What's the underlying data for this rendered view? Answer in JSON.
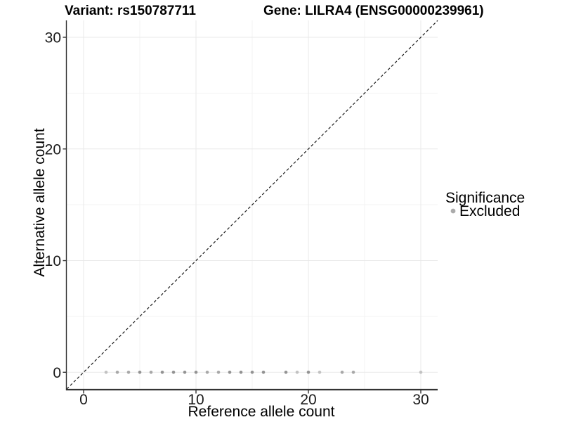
{
  "figure": {
    "background": "#ffffff",
    "titles": {
      "left": "Variant: rs150787711",
      "right": "Gene: LILRA4 (ENSG00000239961)"
    }
  },
  "chart_data": {
    "type": "scatter",
    "title_left": "Variant: rs150787711",
    "title_right": "Gene: LILRA4 (ENSG00000239961)",
    "xlabel": "Reference allele count",
    "ylabel": "Alternative allele count",
    "xlim": [
      -1.5,
      31.5
    ],
    "ylim": [
      -1.5,
      31.5
    ],
    "x_major_ticks": [
      0,
      10,
      20,
      30
    ],
    "y_major_ticks": [
      0,
      10,
      20,
      30
    ],
    "x_minor_gridlines": [
      5,
      15,
      25
    ],
    "y_minor_gridlines": [
      5,
      15,
      25
    ],
    "grid": "on",
    "identity_line": {
      "equation": "y = x",
      "style": "dashed",
      "color": "#1a1a1a"
    },
    "point_shades": {
      "light": "#c2c2c2",
      "medium": "#a8a8a8",
      "dark": "#939393"
    },
    "series": [
      {
        "name": "Excluded",
        "points": [
          {
            "x": 2,
            "y": 0,
            "shade": "light"
          },
          {
            "x": 3,
            "y": 0,
            "shade": "medium"
          },
          {
            "x": 4,
            "y": 0,
            "shade": "medium"
          },
          {
            "x": 5,
            "y": 0,
            "shade": "dark"
          },
          {
            "x": 6,
            "y": 0,
            "shade": "medium"
          },
          {
            "x": 7,
            "y": 0,
            "shade": "dark"
          },
          {
            "x": 8,
            "y": 0,
            "shade": "dark"
          },
          {
            "x": 9,
            "y": 0,
            "shade": "dark"
          },
          {
            "x": 10,
            "y": 0,
            "shade": "dark"
          },
          {
            "x": 11,
            "y": 0,
            "shade": "medium"
          },
          {
            "x": 12,
            "y": 0,
            "shade": "medium"
          },
          {
            "x": 13,
            "y": 0,
            "shade": "dark"
          },
          {
            "x": 14,
            "y": 0,
            "shade": "dark"
          },
          {
            "x": 15,
            "y": 0,
            "shade": "dark"
          },
          {
            "x": 16,
            "y": 0,
            "shade": "dark"
          },
          {
            "x": 18,
            "y": 0,
            "shade": "dark"
          },
          {
            "x": 19,
            "y": 0,
            "shade": "light"
          },
          {
            "x": 20,
            "y": 0,
            "shade": "dark"
          },
          {
            "x": 21,
            "y": 0,
            "shade": "light"
          },
          {
            "x": 23,
            "y": 0,
            "shade": "medium"
          },
          {
            "x": 24,
            "y": 0,
            "shade": "medium"
          },
          {
            "x": 30,
            "y": 0,
            "shade": "light"
          }
        ]
      }
    ],
    "legend": {
      "title": "Significance",
      "position": "right",
      "items": [
        {
          "label": "Excluded",
          "color": "#ababab"
        }
      ]
    },
    "style_colors": {
      "grid_major": "#e9e9e9",
      "grid_minor": "#f3f3f3",
      "axis_line": "#333333",
      "tick_mark": "#333333"
    }
  }
}
